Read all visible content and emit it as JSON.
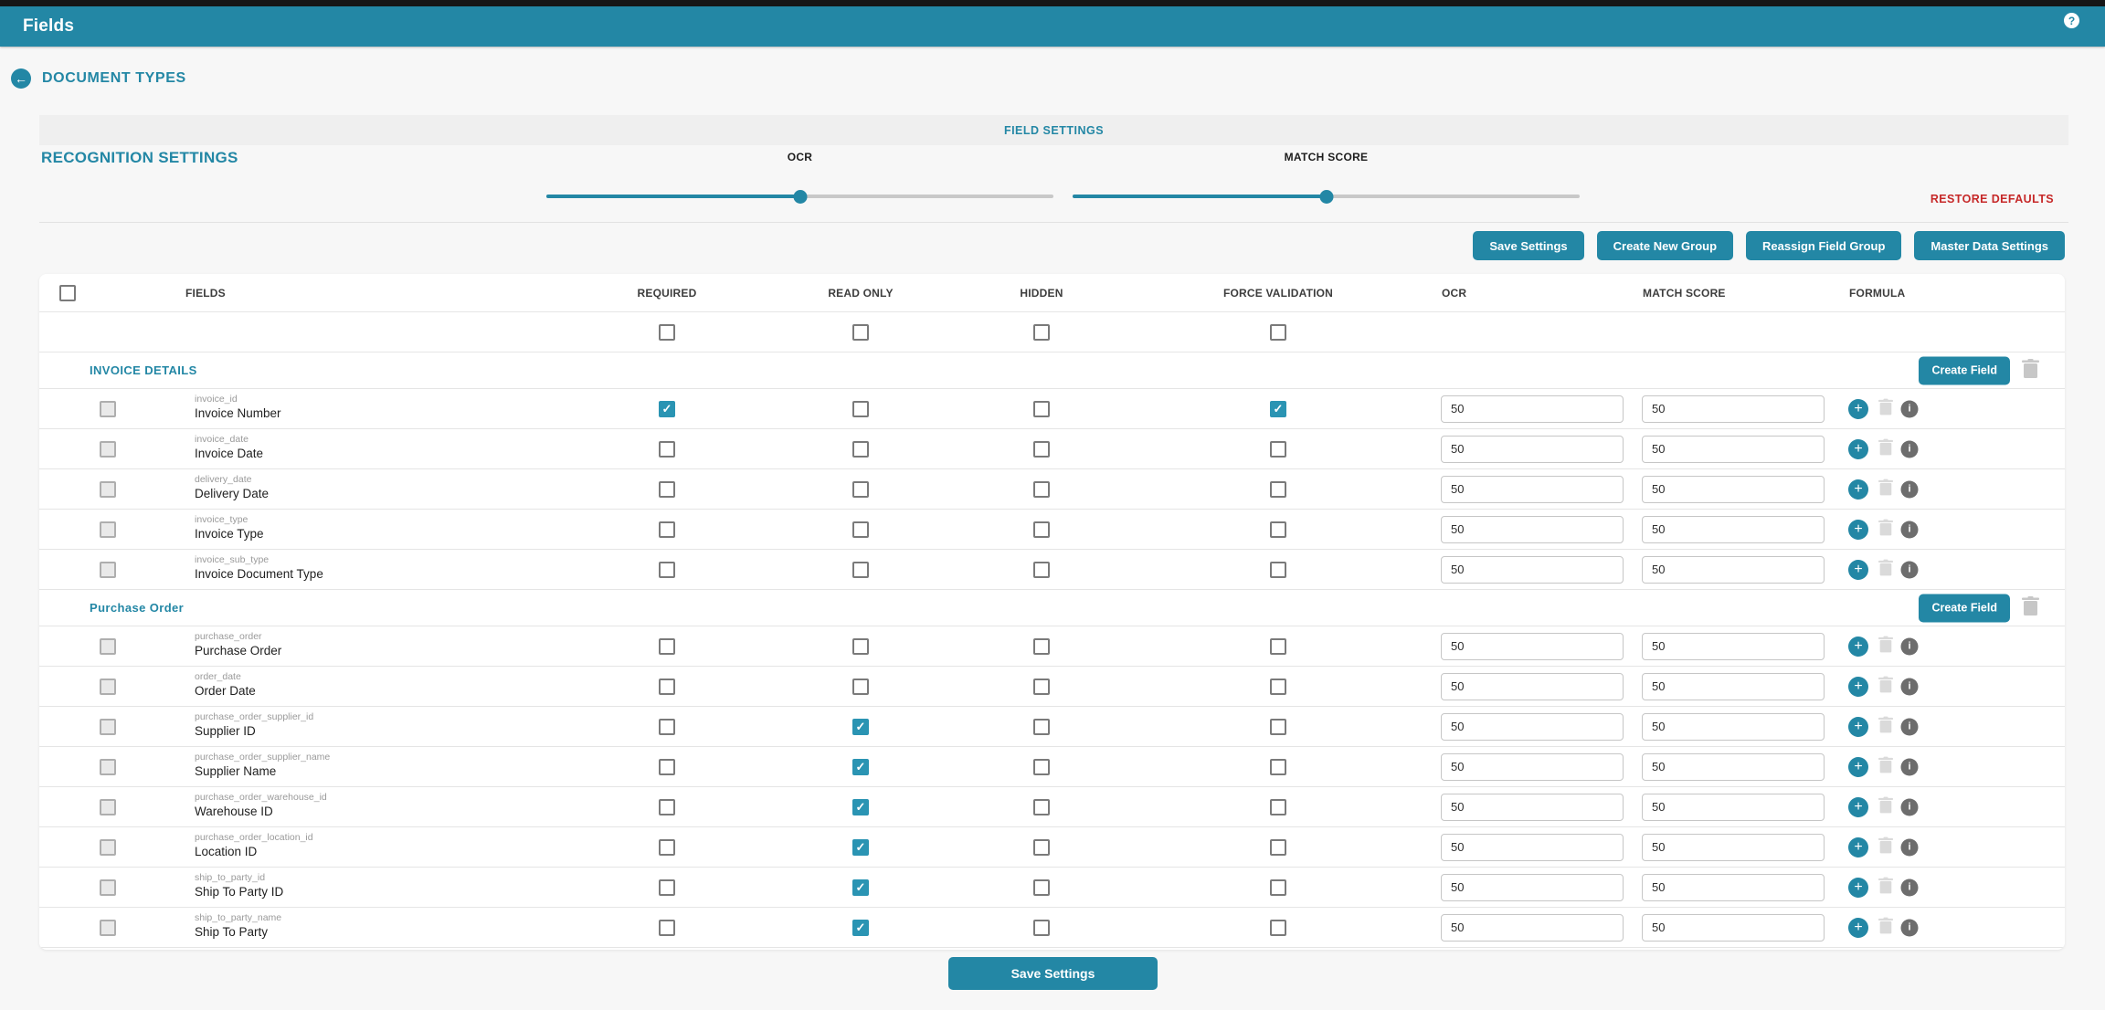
{
  "colors": {
    "teal": "#2387a5",
    "checked": "#2a94b3",
    "restore_red": "#c62828"
  },
  "app_bar": {
    "title": "Fields"
  },
  "nav": {
    "back_label": "DOCUMENT TYPES"
  },
  "settings": {
    "bar_label": "FIELD SETTINGS",
    "section_label": "RECOGNITION SETTINGS",
    "restore_label": "RESTORE DEFAULTS",
    "sliders": [
      {
        "label": "OCR",
        "percent": 50
      },
      {
        "label": "MATCH SCORE",
        "percent": 50
      }
    ]
  },
  "actions": {
    "save": "Save Settings",
    "create_group": "Create New Group",
    "reassign": "Reassign Field Group",
    "master": "Master Data Settings"
  },
  "table": {
    "columns": [
      "FIELDS",
      "REQUIRED",
      "READ ONLY",
      "HIDDEN",
      "FORCE VALIDATION",
      "OCR",
      "MATCH SCORE",
      "FORMULA"
    ],
    "create_field_label": "Create Field",
    "groups": [
      {
        "name": "INVOICE DETAILS",
        "fields": [
          {
            "key": "invoice_id",
            "label": "Invoice Number",
            "required": true,
            "read_only": false,
            "hidden": false,
            "force_validation": true,
            "ocr": "50",
            "match_score": "50"
          },
          {
            "key": "invoice_date",
            "label": "Invoice Date",
            "required": false,
            "read_only": false,
            "hidden": false,
            "force_validation": false,
            "ocr": "50",
            "match_score": "50"
          },
          {
            "key": "delivery_date",
            "label": "Delivery Date",
            "required": false,
            "read_only": false,
            "hidden": false,
            "force_validation": false,
            "ocr": "50",
            "match_score": "50"
          },
          {
            "key": "invoice_type",
            "label": "Invoice Type",
            "required": false,
            "read_only": false,
            "hidden": false,
            "force_validation": false,
            "ocr": "50",
            "match_score": "50"
          },
          {
            "key": "invoice_sub_type",
            "label": "Invoice Document Type",
            "required": false,
            "read_only": false,
            "hidden": false,
            "force_validation": false,
            "ocr": "50",
            "match_score": "50"
          }
        ]
      },
      {
        "name": "Purchase Order",
        "fields": [
          {
            "key": "purchase_order",
            "label": "Purchase Order",
            "required": false,
            "read_only": false,
            "hidden": false,
            "force_validation": false,
            "ocr": "50",
            "match_score": "50"
          },
          {
            "key": "order_date",
            "label": "Order Date",
            "required": false,
            "read_only": false,
            "hidden": false,
            "force_validation": false,
            "ocr": "50",
            "match_score": "50"
          },
          {
            "key": "purchase_order_supplier_id",
            "label": "Supplier ID",
            "required": false,
            "read_only": true,
            "hidden": false,
            "force_validation": false,
            "ocr": "50",
            "match_score": "50"
          },
          {
            "key": "purchase_order_supplier_name",
            "label": "Supplier Name",
            "required": false,
            "read_only": true,
            "hidden": false,
            "force_validation": false,
            "ocr": "50",
            "match_score": "50"
          },
          {
            "key": "purchase_order_warehouse_id",
            "label": "Warehouse ID",
            "required": false,
            "read_only": true,
            "hidden": false,
            "force_validation": false,
            "ocr": "50",
            "match_score": "50"
          },
          {
            "key": "purchase_order_location_id",
            "label": "Location ID",
            "required": false,
            "read_only": true,
            "hidden": false,
            "force_validation": false,
            "ocr": "50",
            "match_score": "50"
          },
          {
            "key": "ship_to_party_id",
            "label": "Ship To Party ID",
            "required": false,
            "read_only": true,
            "hidden": false,
            "force_validation": false,
            "ocr": "50",
            "match_score": "50"
          },
          {
            "key": "ship_to_party_name",
            "label": "Ship To Party",
            "required": false,
            "read_only": true,
            "hidden": false,
            "force_validation": false,
            "ocr": "50",
            "match_score": "50"
          }
        ]
      }
    ]
  },
  "footer": {
    "save": "Save Settings"
  }
}
